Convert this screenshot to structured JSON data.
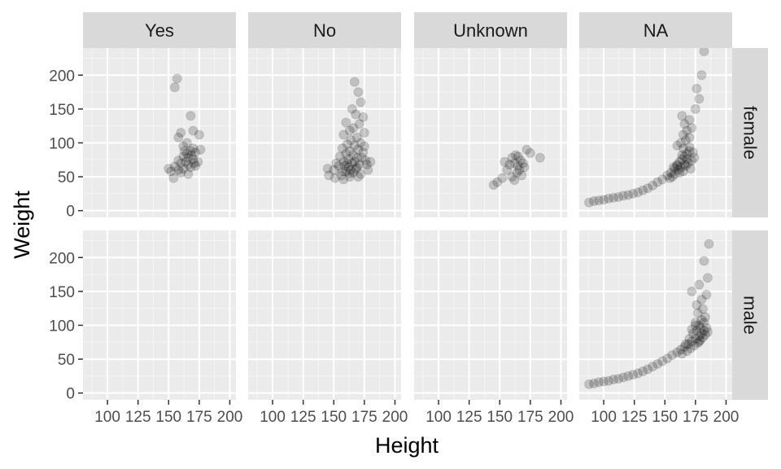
{
  "chart_data": {
    "type": "scatter",
    "title": "",
    "xlabel": "Height",
    "ylabel": "Weight",
    "xlim": [
      80,
      205
    ],
    "ylim": [
      -10,
      240
    ],
    "x_ticks": [
      100,
      125,
      150,
      175,
      200
    ],
    "y_ticks": [
      0,
      50,
      100,
      150,
      200
    ],
    "grid": true,
    "facets": {
      "columns": [
        "Yes",
        "No",
        "Unknown",
        "NA"
      ],
      "rows": [
        "female",
        "male"
      ]
    },
    "point_color": "#000000",
    "point_alpha": 0.05,
    "panel_background": "#ebebeb",
    "strip_background": "#d9d9d9",
    "panels": [
      {
        "col": "Yes",
        "row": "female",
        "points": [
          [
            157,
            195
          ],
          [
            155,
            182
          ],
          [
            160,
            115
          ],
          [
            158,
            108
          ],
          [
            168,
            140
          ],
          [
            170,
            118
          ],
          [
            175,
            112
          ],
          [
            165,
            100
          ],
          [
            162,
            95
          ],
          [
            170,
            92
          ],
          [
            168,
            88
          ],
          [
            172,
            86
          ],
          [
            165,
            84
          ],
          [
            162,
            80
          ],
          [
            166,
            78
          ],
          [
            170,
            76
          ],
          [
            158,
            74
          ],
          [
            164,
            72
          ],
          [
            160,
            70
          ],
          [
            166,
            68
          ],
          [
            172,
            66
          ],
          [
            155,
            65
          ],
          [
            168,
            64
          ],
          [
            162,
            62
          ],
          [
            158,
            60
          ],
          [
            152,
            58
          ],
          [
            160,
            56
          ],
          [
            166,
            54
          ],
          [
            174,
            72
          ],
          [
            176,
            90
          ],
          [
            150,
            62
          ],
          [
            163,
            88
          ],
          [
            169,
            82
          ],
          [
            171,
            70
          ],
          [
            154,
            48
          ]
        ]
      },
      {
        "col": "No",
        "row": "female",
        "points": [
          [
            167,
            190
          ],
          [
            170,
            175
          ],
          [
            172,
            160
          ],
          [
            165,
            150
          ],
          [
            168,
            142
          ],
          [
            174,
            138
          ],
          [
            160,
            130
          ],
          [
            171,
            128
          ],
          [
            166,
            122
          ],
          [
            163,
            118
          ],
          [
            175,
            115
          ],
          [
            158,
            112
          ],
          [
            169,
            108
          ],
          [
            164,
            104
          ],
          [
            172,
            100
          ],
          [
            161,
            98
          ],
          [
            167,
            96
          ],
          [
            157,
            92
          ],
          [
            170,
            90
          ],
          [
            163,
            88
          ],
          [
            174,
            86
          ],
          [
            160,
            84
          ],
          [
            166,
            82
          ],
          [
            155,
            80
          ],
          [
            169,
            78
          ],
          [
            162,
            76
          ],
          [
            176,
            74
          ],
          [
            158,
            72
          ],
          [
            165,
            70
          ],
          [
            171,
            68
          ],
          [
            154,
            66
          ],
          [
            162,
            64
          ],
          [
            168,
            62
          ],
          [
            150,
            60
          ],
          [
            160,
            58
          ],
          [
            166,
            56
          ],
          [
            172,
            54
          ],
          [
            156,
            52
          ],
          [
            163,
            50
          ],
          [
            146,
            52
          ],
          [
            151,
            48
          ],
          [
            158,
            46
          ],
          [
            170,
            50
          ],
          [
            178,
            60
          ],
          [
            180,
            72
          ],
          [
            175,
            95
          ],
          [
            145,
            62
          ],
          [
            164,
            60
          ],
          [
            159,
            66
          ],
          [
            167,
            72
          ],
          [
            173,
            78
          ],
          [
            161,
            70
          ],
          [
            157,
            58
          ],
          [
            169,
            64
          ],
          [
            163,
            55
          ],
          [
            152,
            70
          ],
          [
            177,
            68
          ]
        ]
      },
      {
        "col": "Unknown",
        "row": "female",
        "points": [
          [
            163,
            82
          ],
          [
            165,
            80
          ],
          [
            160,
            78
          ],
          [
            167,
            74
          ],
          [
            162,
            70
          ],
          [
            158,
            68
          ],
          [
            165,
            66
          ],
          [
            170,
            64
          ],
          [
            156,
            60
          ],
          [
            164,
            56
          ],
          [
            168,
            52
          ],
          [
            160,
            50
          ],
          [
            152,
            48
          ],
          [
            148,
            42
          ],
          [
            145,
            38
          ],
          [
            175,
            85
          ],
          [
            183,
            78
          ],
          [
            172,
            90
          ],
          [
            154,
            72
          ],
          [
            166,
            60
          ],
          [
            162,
            45
          ],
          [
            169,
            70
          ]
        ]
      },
      {
        "col": "NA",
        "row": "female",
        "points": [
          [
            88,
            12
          ],
          [
            92,
            14
          ],
          [
            96,
            15
          ],
          [
            100,
            16
          ],
          [
            104,
            18
          ],
          [
            108,
            19
          ],
          [
            112,
            20
          ],
          [
            116,
            22
          ],
          [
            120,
            23
          ],
          [
            124,
            25
          ],
          [
            128,
            27
          ],
          [
            132,
            30
          ],
          [
            136,
            33
          ],
          [
            140,
            37
          ],
          [
            144,
            42
          ],
          [
            148,
            46
          ],
          [
            152,
            52
          ],
          [
            155,
            56
          ],
          [
            158,
            62
          ],
          [
            160,
            68
          ],
          [
            162,
            72
          ],
          [
            164,
            76
          ],
          [
            166,
            80
          ],
          [
            168,
            84
          ],
          [
            170,
            88
          ],
          [
            165,
            92
          ],
          [
            160,
            96
          ],
          [
            163,
            100
          ],
          [
            167,
            104
          ],
          [
            170,
            108
          ],
          [
            165,
            112
          ],
          [
            168,
            118
          ],
          [
            172,
            122
          ],
          [
            166,
            128
          ],
          [
            170,
            134
          ],
          [
            164,
            140
          ],
          [
            175,
            150
          ],
          [
            178,
            165
          ],
          [
            176,
            180
          ],
          [
            180,
            200
          ],
          [
            182,
            235
          ],
          [
            161,
            60
          ],
          [
            163,
            64
          ],
          [
            165,
            58
          ],
          [
            167,
            66
          ],
          [
            169,
            70
          ],
          [
            158,
            54
          ],
          [
            156,
            50
          ],
          [
            172,
            74
          ],
          [
            174,
            78
          ],
          [
            154,
            48
          ],
          [
            171,
            62
          ],
          [
            166,
            68
          ],
          [
            162,
            56
          ],
          [
            168,
            76
          ],
          [
            160,
            66
          ],
          [
            164,
            82
          ],
          [
            170,
            94
          ],
          [
            157,
            64
          ],
          [
            173,
            86
          ]
        ]
      },
      {
        "col": "Yes",
        "row": "male",
        "points": []
      },
      {
        "col": "No",
        "row": "male",
        "points": []
      },
      {
        "col": "Unknown",
        "row": "male",
        "points": []
      },
      {
        "col": "NA",
        "row": "male",
        "points": [
          [
            88,
            13
          ],
          [
            92,
            14
          ],
          [
            96,
            16
          ],
          [
            100,
            17
          ],
          [
            104,
            18
          ],
          [
            108,
            20
          ],
          [
            112,
            21
          ],
          [
            116,
            23
          ],
          [
            120,
            25
          ],
          [
            124,
            27
          ],
          [
            128,
            29
          ],
          [
            132,
            32
          ],
          [
            136,
            35
          ],
          [
            140,
            39
          ],
          [
            144,
            43
          ],
          [
            148,
            47
          ],
          [
            152,
            51
          ],
          [
            156,
            56
          ],
          [
            160,
            60
          ],
          [
            163,
            64
          ],
          [
            166,
            68
          ],
          [
            169,
            72
          ],
          [
            172,
            76
          ],
          [
            175,
            80
          ],
          [
            178,
            84
          ],
          [
            180,
            88
          ],
          [
            182,
            92
          ],
          [
            184,
            96
          ],
          [
            178,
            100
          ],
          [
            175,
            104
          ],
          [
            180,
            108
          ],
          [
            183,
            112
          ],
          [
            177,
            118
          ],
          [
            181,
            124
          ],
          [
            176,
            130
          ],
          [
            180,
            138
          ],
          [
            184,
            145
          ],
          [
            172,
            150
          ],
          [
            178,
            160
          ],
          [
            185,
            170
          ],
          [
            182,
            195
          ],
          [
            186,
            220
          ],
          [
            174,
            70
          ],
          [
            177,
            74
          ],
          [
            179,
            78
          ],
          [
            181,
            82
          ],
          [
            171,
            66
          ],
          [
            168,
            62
          ],
          [
            173,
            88
          ],
          [
            176,
            92
          ],
          [
            179,
            96
          ],
          [
            183,
            86
          ],
          [
            170,
            80
          ],
          [
            167,
            72
          ],
          [
            175,
            100
          ],
          [
            185,
            90
          ],
          [
            164,
            58
          ],
          [
            172,
            94
          ],
          [
            178,
            76
          ],
          [
            182,
            104
          ]
        ]
      }
    ]
  }
}
